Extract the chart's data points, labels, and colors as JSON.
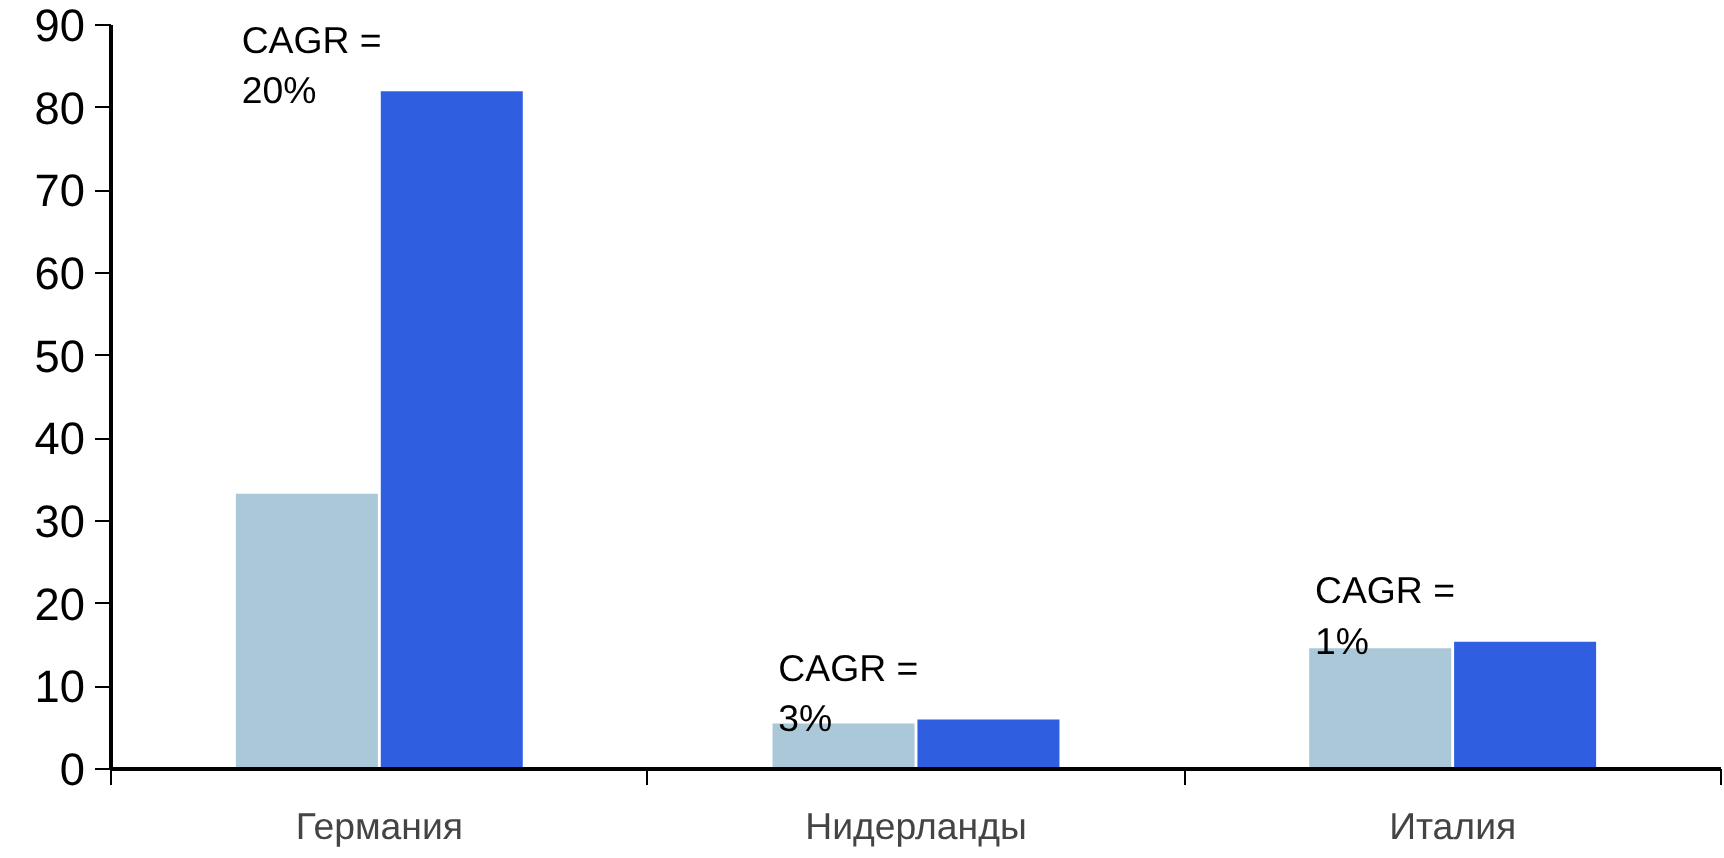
{
  "chart_data": {
    "type": "bar",
    "categories": [
      "Германия",
      "Нидерланды",
      "Италия"
    ],
    "series": [
      {
        "color": "#aac8d8",
        "values": [
          33.3,
          5.5,
          14.6
        ]
      },
      {
        "color": "#2f5fe0",
        "values": [
          82,
          6,
          15.4
        ]
      }
    ],
    "ylim": [
      0,
      90
    ],
    "yticks": [
      0,
      10,
      20,
      30,
      40,
      50,
      60,
      70,
      80,
      90
    ],
    "grid": false,
    "annotations": [
      {
        "text": "CAGR =\n20%",
        "x": "Германия",
        "y": 82
      },
      {
        "text": "CAGR =\n3%",
        "x": "Нидерланды",
        "y": 6
      },
      {
        "text": "CAGR =\n1%",
        "x": "Италия",
        "y": 15.4
      }
    ]
  }
}
